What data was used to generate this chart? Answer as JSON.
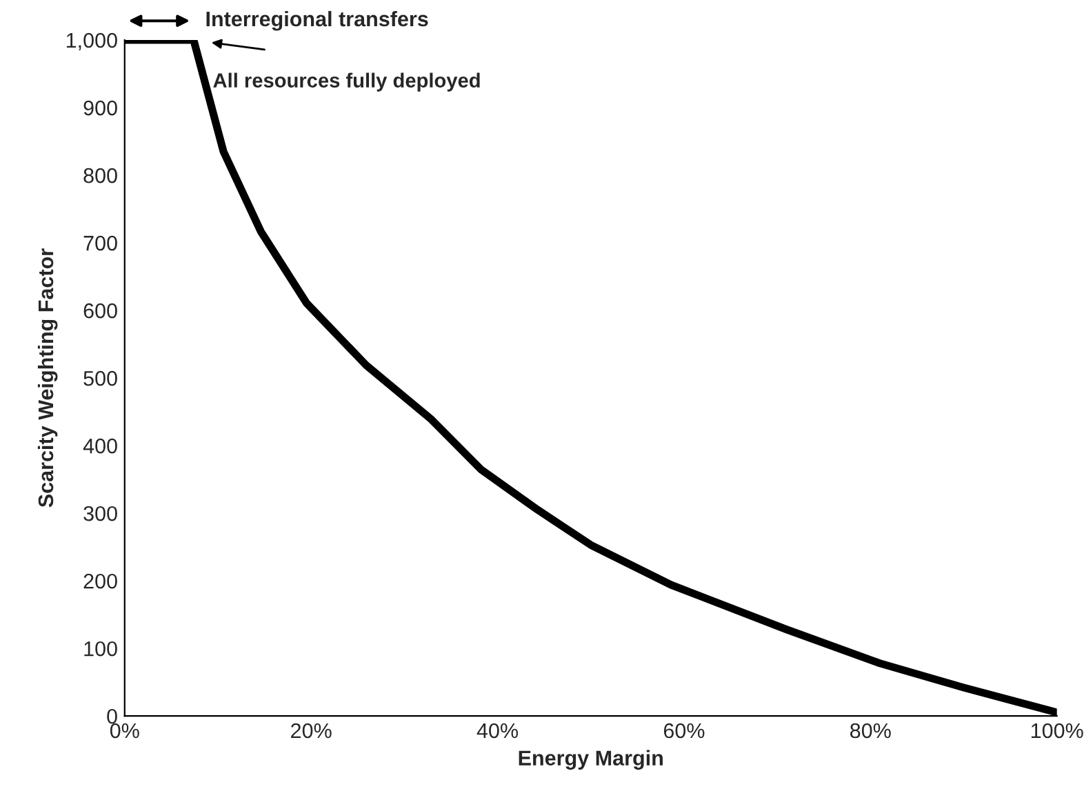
{
  "chart_data": {
    "type": "line",
    "xlabel": "Energy Margin",
    "ylabel": "Scarcity Weighting Factor",
    "x": [
      0,
      7.4,
      10.6,
      14.6,
      19.5,
      25.9,
      32.8,
      38.2,
      44.3,
      50,
      58.6,
      71,
      81,
      90,
      99.8
    ],
    "series": [
      {
        "color": "#000000",
        "values": [
          1000,
          1000,
          835,
          717,
          611,
          519,
          440,
          365,
          305,
          253,
          194,
          128,
          78,
          42,
          6
        ]
      }
    ],
    "xlim": [
      0,
      100
    ],
    "xticks": [
      {
        "value": 0,
        "label": "0%"
      },
      {
        "value": 20,
        "label": "20%"
      },
      {
        "value": 40,
        "label": "40%"
      },
      {
        "value": 60,
        "label": "60%"
      },
      {
        "value": 80,
        "label": "80%"
      },
      {
        "value": 100,
        "label": "100%"
      }
    ],
    "ylim": [
      0,
      1000
    ],
    "yticks": [
      0,
      100,
      200,
      300,
      400,
      500,
      600,
      700,
      800,
      900,
      {
        "value": 1000,
        "label": "1,000"
      }
    ],
    "annotations": [
      "Interregional transfers",
      "All resources fully deployed"
    ],
    "grid": false,
    "legend": false,
    "marker": "none",
    "line_style": "solid"
  }
}
